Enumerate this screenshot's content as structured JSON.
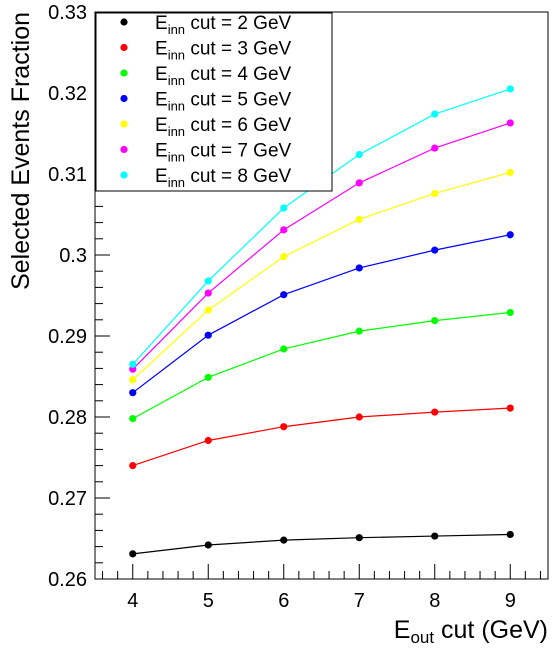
{
  "chart_data": {
    "type": "line",
    "xlabel_main": "E",
    "xlabel_sub": "out",
    "xlabel_rest": " cut (GeV)",
    "ylabel": "Selected Events Fraction",
    "xlim": [
      3.5,
      9.5
    ],
    "ylim": [
      0.26,
      0.33
    ],
    "x_ticks": [
      4,
      5,
      6,
      7,
      8,
      9
    ],
    "x_tick_labels": [
      "4",
      "5",
      "6",
      "7",
      "8",
      "9"
    ],
    "y_ticks": [
      0.26,
      0.27,
      0.28,
      0.29,
      0.3,
      0.31,
      0.32,
      0.33
    ],
    "y_tick_labels": [
      "0.26",
      "0.27",
      "0.28",
      "0.29",
      "0.3",
      "0.31",
      "0.32",
      "0.33"
    ],
    "grid": false,
    "legend_position": "top-left",
    "x": [
      4,
      5,
      6,
      7,
      8,
      9
    ],
    "series": [
      {
        "name": "cut = 2 GeV",
        "legend_main": "E",
        "legend_sub": "inn",
        "legend_rest": " cut = 2 GeV",
        "color": "#000000",
        "values": [
          0.2631,
          0.2642,
          0.2648,
          0.2651,
          0.2653,
          0.2655
        ]
      },
      {
        "name": "cut = 3 GeV",
        "legend_main": "E",
        "legend_sub": "inn",
        "legend_rest": " cut = 3 GeV",
        "color": "#ff0000",
        "values": [
          0.274,
          0.2771,
          0.2788,
          0.28,
          0.2806,
          0.2811
        ]
      },
      {
        "name": "cut = 4 GeV",
        "legend_main": "E",
        "legend_sub": "inn",
        "legend_rest": " cut = 4 GeV",
        "color": "#00ff00",
        "values": [
          0.2798,
          0.2849,
          0.2884,
          0.2906,
          0.2919,
          0.2929
        ]
      },
      {
        "name": "cut = 5 GeV",
        "legend_main": "E",
        "legend_sub": "inn",
        "legend_rest": " cut = 5 GeV",
        "color": "#0000ff",
        "values": [
          0.283,
          0.2901,
          0.2951,
          0.2984,
          0.3006,
          0.3025
        ]
      },
      {
        "name": "cut = 6 GeV",
        "legend_main": "E",
        "legend_sub": "inn",
        "legend_rest": " cut = 6 GeV",
        "color": "#ffff00",
        "values": [
          0.2846,
          0.2932,
          0.2998,
          0.3044,
          0.3076,
          0.3102
        ]
      },
      {
        "name": "cut = 7 GeV",
        "legend_main": "E",
        "legend_sub": "inn",
        "legend_rest": " cut = 7 GeV",
        "color": "#ff00ff",
        "values": [
          0.2859,
          0.2953,
          0.3031,
          0.3089,
          0.3132,
          0.3163
        ]
      },
      {
        "name": "cut = 8 GeV",
        "legend_main": "E",
        "legend_sub": "inn",
        "legend_rest": " cut = 8 GeV",
        "color": "#00ffff",
        "values": [
          0.2865,
          0.2968,
          0.3058,
          0.3124,
          0.3174,
          0.3205
        ]
      }
    ]
  }
}
